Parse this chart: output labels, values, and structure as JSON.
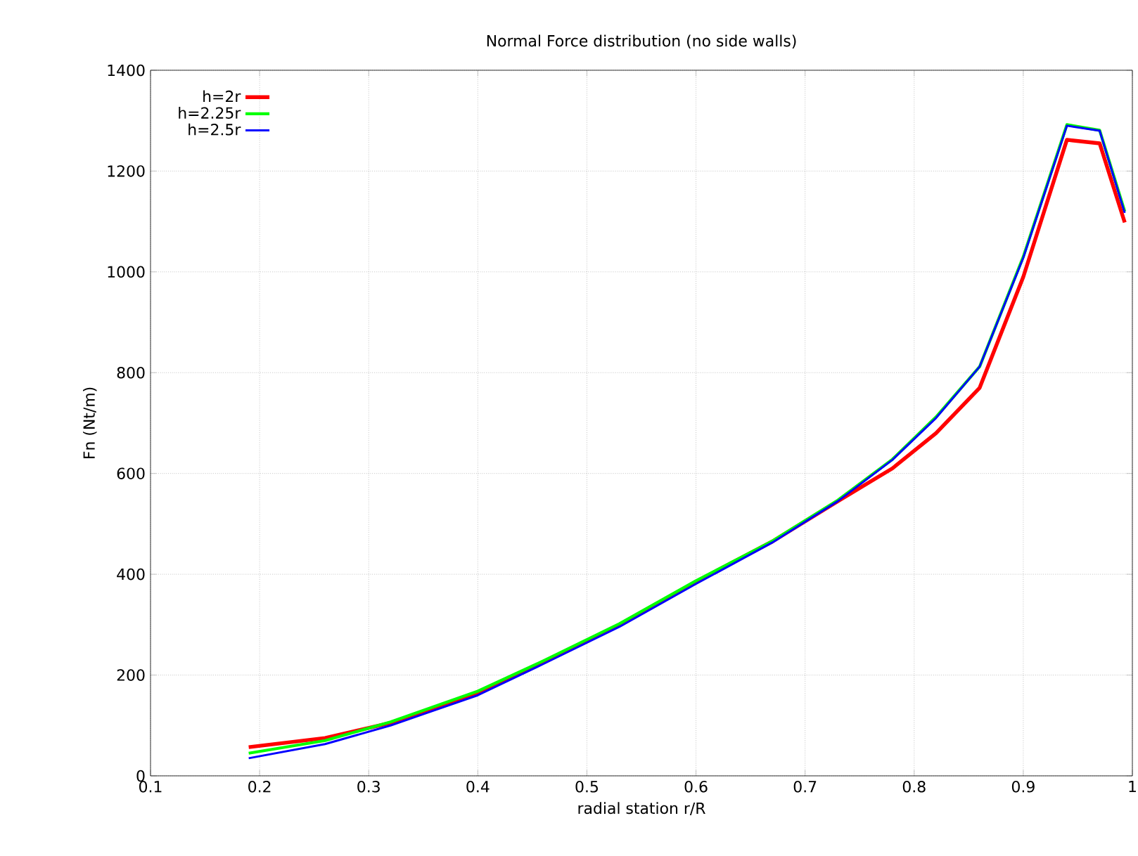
{
  "chart_data": {
    "type": "line",
    "title": "Normal Force distribution (no side walls)",
    "xlabel": "radial station r/R",
    "ylabel": "Fn (Nt/m)",
    "x": [
      0.19,
      0.26,
      0.32,
      0.4,
      0.46,
      0.53,
      0.6,
      0.67,
      0.73,
      0.78,
      0.82,
      0.86,
      0.9,
      0.94,
      0.97,
      0.993
    ],
    "series": [
      {
        "name": "h=2r",
        "color": "#ff0000",
        "values": [
          57,
          75,
          105,
          165,
          225,
          300,
          385,
          465,
          545,
          610,
          680,
          770,
          990,
          1262,
          1255,
          1098
        ]
      },
      {
        "name": "h=2.25r",
        "color": "#00ff00",
        "values": [
          45,
          70,
          107,
          168,
          228,
          302,
          387,
          466,
          547,
          628,
          712,
          812,
          1030,
          1292,
          1281,
          1120
        ]
      },
      {
        "name": "h=2.5r",
        "color": "#0000ff",
        "values": [
          35,
          63,
          100,
          160,
          222,
          296,
          381,
          463,
          545,
          627,
          710,
          812,
          1028,
          1290,
          1280,
          1117
        ]
      }
    ],
    "xlim": [
      0.1,
      1.0
    ],
    "ylim": [
      0,
      1400
    ],
    "xticks": [
      0.1,
      0.2,
      0.3,
      0.4,
      0.5,
      0.6,
      0.7,
      0.8,
      0.9,
      1
    ],
    "yticks": [
      0,
      200,
      400,
      600,
      800,
      1000,
      1200,
      1400
    ],
    "grid": true,
    "legend": "top left",
    "marker": "none",
    "line_style": "solid"
  }
}
